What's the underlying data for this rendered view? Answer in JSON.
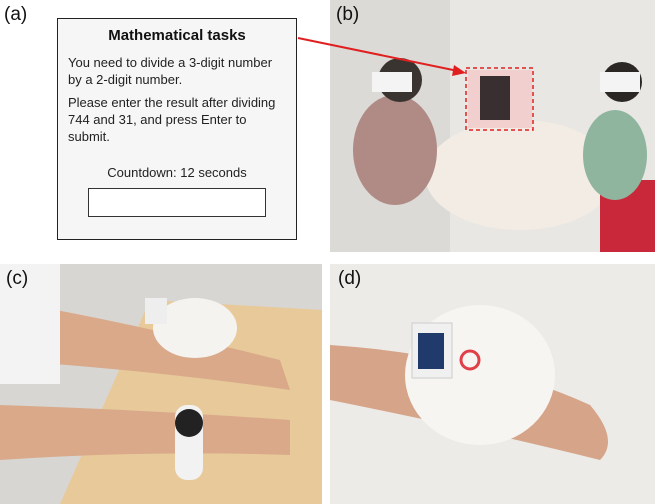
{
  "panels": {
    "a": "(a)",
    "b": "(b)",
    "c": "(c)",
    "d": "(d)"
  },
  "task_window": {
    "title": "Mathematical tasks",
    "paragraphs": [
      "You need to divide a 3-digit number by a 2-digit number.",
      "Please enter the result after dividing 744 and 31, and press Enter to submit."
    ],
    "countdown": "Countdown: 12 seconds"
  }
}
